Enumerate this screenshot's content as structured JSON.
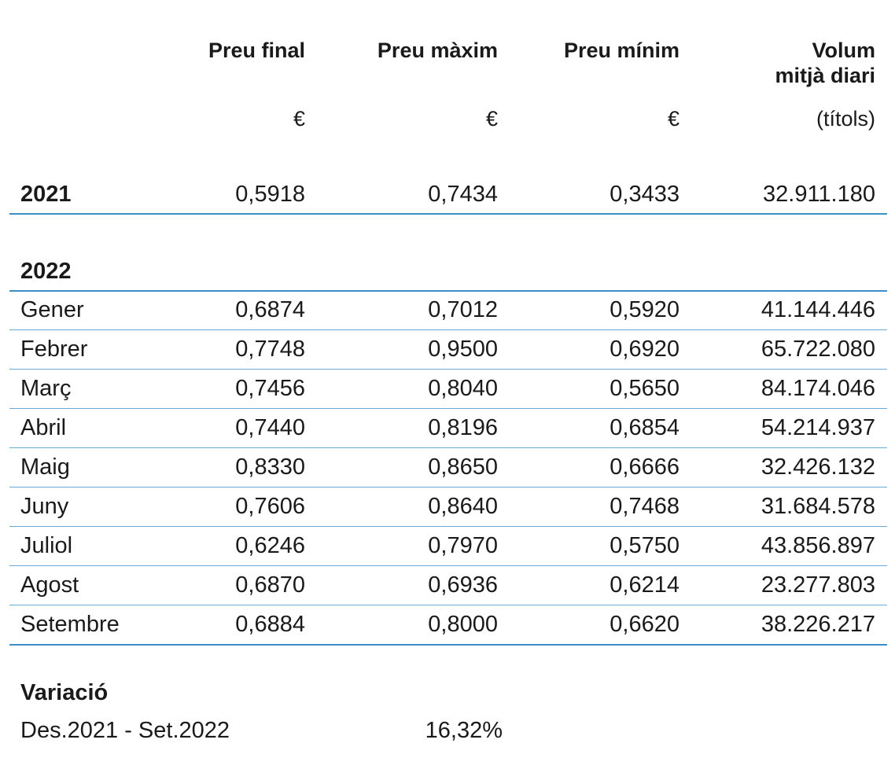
{
  "headers": {
    "final": "Preu final",
    "max": "Preu màxim",
    "min": "Preu mínim",
    "volume_line1": "Volum",
    "volume_line2": "mitjà diari"
  },
  "units": {
    "final": "€",
    "max": "€",
    "min": "€",
    "volume": "(títols)"
  },
  "summary_2021": {
    "label": "2021",
    "final": "0,5918",
    "max": "0,7434",
    "min": "0,3433",
    "volume": "32.911.180"
  },
  "section_2022": "2022",
  "months": [
    {
      "label": "Gener",
      "final": "0,6874",
      "max": "0,7012",
      "min": "0,5920",
      "volume": "41.144.446"
    },
    {
      "label": "Febrer",
      "final": "0,7748",
      "max": "0,9500",
      "min": "0,6920",
      "volume": "65.722.080"
    },
    {
      "label": "Març",
      "final": "0,7456",
      "max": "0,8040",
      "min": "0,5650",
      "volume": "84.174.046"
    },
    {
      "label": "Abril",
      "final": "0,7440",
      "max": "0,8196",
      "min": "0,6854",
      "volume": "54.214.937"
    },
    {
      "label": "Maig",
      "final": "0,8330",
      "max": "0,8650",
      "min": "0,6666",
      "volume": "32.426.132"
    },
    {
      "label": "Juny",
      "final": "0,7606",
      "max": "0,8640",
      "min": "0,7468",
      "volume": "31.684.578"
    },
    {
      "label": "Juliol",
      "final": "0,6246",
      "max": "0,7970",
      "min": "0,5750",
      "volume": "43.856.897"
    },
    {
      "label": "Agost",
      "final": "0,6870",
      "max": "0,6936",
      "min": "0,6214",
      "volume": "23.277.803"
    },
    {
      "label": "Setembre",
      "final": "0,6884",
      "max": "0,8000",
      "min": "0,6620",
      "volume": "38.226.217"
    }
  ],
  "variation": {
    "title": "Variació",
    "period": "Des.2021 - Set.2022",
    "value": "16,32%"
  },
  "colors": {
    "rule": "#3b8fc6",
    "text": "#1a1a1a"
  }
}
